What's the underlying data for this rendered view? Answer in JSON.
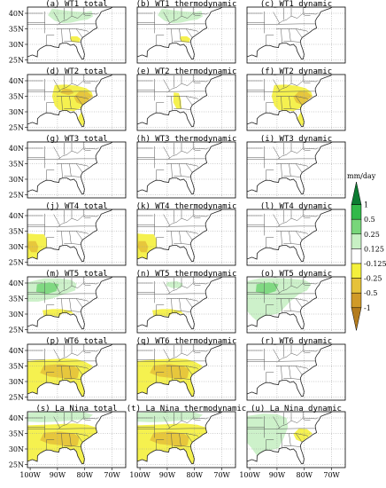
{
  "panels": [
    {
      "label": "(a) WT1 total",
      "fills": [
        {
          "s": "ne_band",
          "c": 3
        },
        {
          "s": "ga_spot",
          "c": 5
        }
      ]
    },
    {
      "label": "(b) WT1 thermodynamic",
      "fills": [
        {
          "s": "ne_band",
          "c": 3
        },
        {
          "s": "ga_spot",
          "c": 5
        }
      ]
    },
    {
      "label": "(c) WT1 dynamic",
      "fills": []
    },
    {
      "label": "(d) WT2 total",
      "fills": [
        {
          "s": "southeast",
          "c": 5
        },
        {
          "s": "carolinas",
          "c": 6
        },
        {
          "s": "tn_spot",
          "c": 6
        }
      ]
    },
    {
      "label": "(e) WT2 thermodynamic",
      "fills": [
        {
          "s": "al_band",
          "c": 5
        },
        {
          "s": "ne_spot",
          "c": 4
        }
      ]
    },
    {
      "label": "(f) WT2 dynamic",
      "fills": [
        {
          "s": "southeast",
          "c": 5
        },
        {
          "s": "carolinas",
          "c": 6
        }
      ]
    },
    {
      "label": "(g) WT3 total",
      "fills": []
    },
    {
      "label": "(h) WT3 thermodynamic",
      "fills": []
    },
    {
      "label": "(i) WT3 dynamic",
      "fills": []
    },
    {
      "label": "(j) WT4 total",
      "fills": [
        {
          "s": "texas",
          "c": 5
        },
        {
          "s": "texas_core",
          "c": 6
        }
      ]
    },
    {
      "label": "(k) WT4 thermodynamic",
      "fills": [
        {
          "s": "texas",
          "c": 5
        },
        {
          "s": "texas_core",
          "c": 6
        }
      ]
    },
    {
      "label": "(l) WT4 dynamic",
      "fills": []
    },
    {
      "label": "(m) WT5 total",
      "fills": [
        {
          "s": "midwest",
          "c": 3
        },
        {
          "s": "midwest_core",
          "c": 2
        },
        {
          "s": "gulf",
          "c": 5
        }
      ]
    },
    {
      "label": "(n) WT5 thermodynamic",
      "fills": [
        {
          "s": "ohio_spot",
          "c": 3
        },
        {
          "s": "gulf",
          "c": 5
        }
      ]
    },
    {
      "label": "(o) WT5 dynamic",
      "fills": [
        {
          "s": "broad_green",
          "c": 3
        },
        {
          "s": "midwest_core",
          "c": 2
        }
      ]
    },
    {
      "label": "(p) WT6 total",
      "fills": [
        {
          "s": "south",
          "c": 5
        },
        {
          "s": "south_core",
          "c": 6
        }
      ]
    },
    {
      "label": "(q) WT6 thermodynamic",
      "fills": [
        {
          "s": "south",
          "c": 5
        },
        {
          "s": "south_core",
          "c": 6
        }
      ]
    },
    {
      "label": "(r) WT6 dynamic",
      "fills": []
    },
    {
      "label": "(s) La Nina total",
      "fills": [
        {
          "s": "south_wide",
          "c": 5
        },
        {
          "s": "south_core",
          "c": 6
        },
        {
          "s": "north_band",
          "c": 3
        }
      ]
    },
    {
      "label": "(t) La Nina thermodynamic",
      "fills": [
        {
          "s": "south_wide",
          "c": 5
        },
        {
          "s": "south_core",
          "c": 6
        },
        {
          "s": "north_band",
          "c": 3
        }
      ]
    },
    {
      "label": "(u) La Nina dynamic",
      "fills": [
        {
          "s": "west_green",
          "c": 3
        },
        {
          "s": "carolinas",
          "c": 5
        }
      ]
    }
  ],
  "lat_ticks": [
    "40N",
    "35N",
    "30N",
    "25N"
  ],
  "lon_ticks": [
    "100W",
    "90W",
    "80W",
    "70W"
  ],
  "colorbar": {
    "unit": "mm/day",
    "labels": [
      "1",
      "0.5",
      "0.25",
      "0.125",
      "-0.125",
      "-0.25",
      "-0.5",
      "-1"
    ],
    "colors": [
      "#0c7c32",
      "#32b94a",
      "#78d67a",
      "#c8f0c4",
      "#ffffff",
      "#f4f03c",
      "#e6c23a",
      "#d09a28",
      "#b47c1e"
    ]
  }
}
